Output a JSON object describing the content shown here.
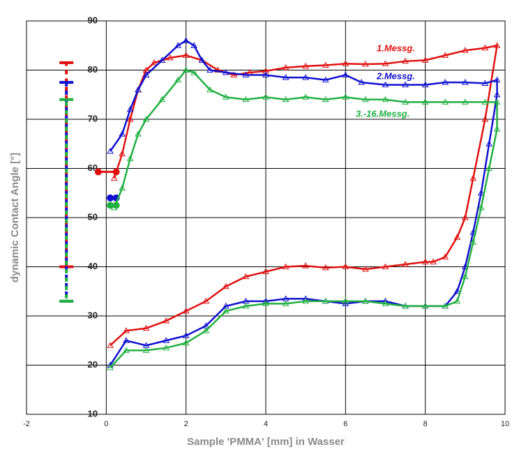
{
  "chart_data": {
    "type": "line",
    "x_label": "Sample 'PMMA' [mm] in Wasser",
    "y_label": "dynamic Contact Angle [°]",
    "xlim": [
      -2,
      10
    ],
    "xticks": [
      -2,
      0,
      2,
      4,
      6,
      8,
      10
    ],
    "ylim": [
      10,
      90
    ],
    "yticks": [
      10,
      20,
      30,
      40,
      50,
      60,
      70,
      80,
      90
    ],
    "grid": true,
    "series": [
      {
        "name": "1.Messg.",
        "color": "#e01010",
        "x": [
          0.2,
          0.4,
          0.6,
          0.8,
          1.0,
          1.2,
          1.6,
          2.0,
          2.4,
          2.8,
          3.2,
          3.6,
          4.0,
          4.5,
          5.0,
          5.5,
          6.0,
          6.5,
          7.0,
          7.5,
          8.0,
          8.5,
          9.0,
          9.5,
          9.8,
          9.5,
          9.2,
          9.0,
          8.8,
          8.5,
          8.2,
          8.0,
          7.5,
          7.0,
          6.5,
          6.0,
          5.5,
          5.0,
          4.5,
          4.0,
          3.5,
          3.0,
          2.5,
          2.0,
          1.5,
          1.0,
          0.5,
          0.1
        ],
        "values": [
          58,
          63,
          70,
          76,
          80,
          81.5,
          82.5,
          83,
          82,
          80,
          79,
          79.5,
          79.8,
          80.5,
          80.8,
          81,
          81.3,
          81.2,
          81.3,
          81.8,
          82,
          83,
          84,
          84.5,
          85,
          70,
          58,
          50,
          46,
          42,
          41,
          41,
          40.5,
          40,
          39.5,
          40,
          39.8,
          40.2,
          40,
          39,
          38,
          36,
          33,
          31,
          29,
          27.5,
          27,
          24
        ],
        "range": [
          40,
          81.5
        ],
        "start_x": [
          -0.2,
          0.25
        ],
        "start_value": 59.3
      },
      {
        "name": "2.Messg.",
        "color": "#1010d0",
        "x": [
          0.1,
          0.4,
          0.6,
          0.8,
          1.0,
          1.4,
          1.8,
          2.0,
          2.2,
          2.4,
          2.6,
          3.0,
          3.5,
          4.0,
          4.5,
          5.0,
          5.5,
          6.0,
          6.4,
          7.0,
          7.5,
          8.0,
          8.5,
          9.0,
          9.5,
          9.8,
          9.8,
          9.6,
          9.4,
          9.2,
          9.0,
          8.8,
          8.5,
          8.0,
          7.5,
          7.0,
          6.5,
          6.0,
          5.5,
          5.0,
          4.5,
          4.0,
          3.5,
          3.0,
          2.5,
          2.0,
          1.5,
          1.0,
          0.5,
          0.1
        ],
        "values": [
          63.5,
          67,
          72,
          76,
          79,
          82,
          85,
          86,
          85,
          82,
          80,
          79.5,
          79,
          79,
          78.5,
          78.5,
          78,
          79,
          77.5,
          77,
          77,
          77,
          77.5,
          77.5,
          77.3,
          78,
          75,
          65,
          55,
          47,
          40,
          35,
          32,
          32,
          32,
          33,
          33,
          32.5,
          33,
          33.5,
          33.5,
          33,
          33,
          32,
          28,
          26,
          25,
          24,
          25,
          20
        ],
        "range": [
          33,
          77.5
        ],
        "start_x": [
          0.1,
          0.25
        ],
        "start_value": 54
      },
      {
        "name": "3.-16.Messg.",
        "color": "#20b040",
        "x": [
          0.2,
          0.4,
          0.6,
          0.8,
          1.0,
          1.4,
          1.8,
          2.0,
          2.2,
          2.6,
          3.0,
          3.5,
          4.0,
          4.5,
          5.0,
          5.5,
          6.0,
          6.5,
          7.0,
          7.5,
          8.0,
          8.5,
          9.0,
          9.5,
          9.8,
          9.8,
          9.6,
          9.4,
          9.2,
          9.0,
          8.8,
          8.5,
          8.0,
          7.5,
          7.0,
          6.5,
          6.0,
          5.5,
          5.0,
          4.5,
          4.0,
          3.5,
          3.0,
          2.5,
          2.0,
          1.5,
          1.0,
          0.5,
          0.1
        ],
        "values": [
          52,
          56,
          62,
          67,
          70,
          74,
          78,
          80,
          79.5,
          76,
          74.5,
          74,
          74.5,
          74,
          74.5,
          74,
          74.5,
          74,
          74,
          73.5,
          73.5,
          73.5,
          73.5,
          73.5,
          73.5,
          68,
          60,
          52,
          45,
          38,
          33,
          32,
          32,
          32,
          32.5,
          33,
          33,
          33,
          33,
          32.5,
          32.5,
          32,
          31,
          27,
          24.5,
          23.5,
          23,
          23,
          19.5
        ],
        "range": [
          33,
          74
        ],
        "start_x": [
          0.1,
          0.25
        ],
        "start_value": 52.5
      }
    ]
  }
}
